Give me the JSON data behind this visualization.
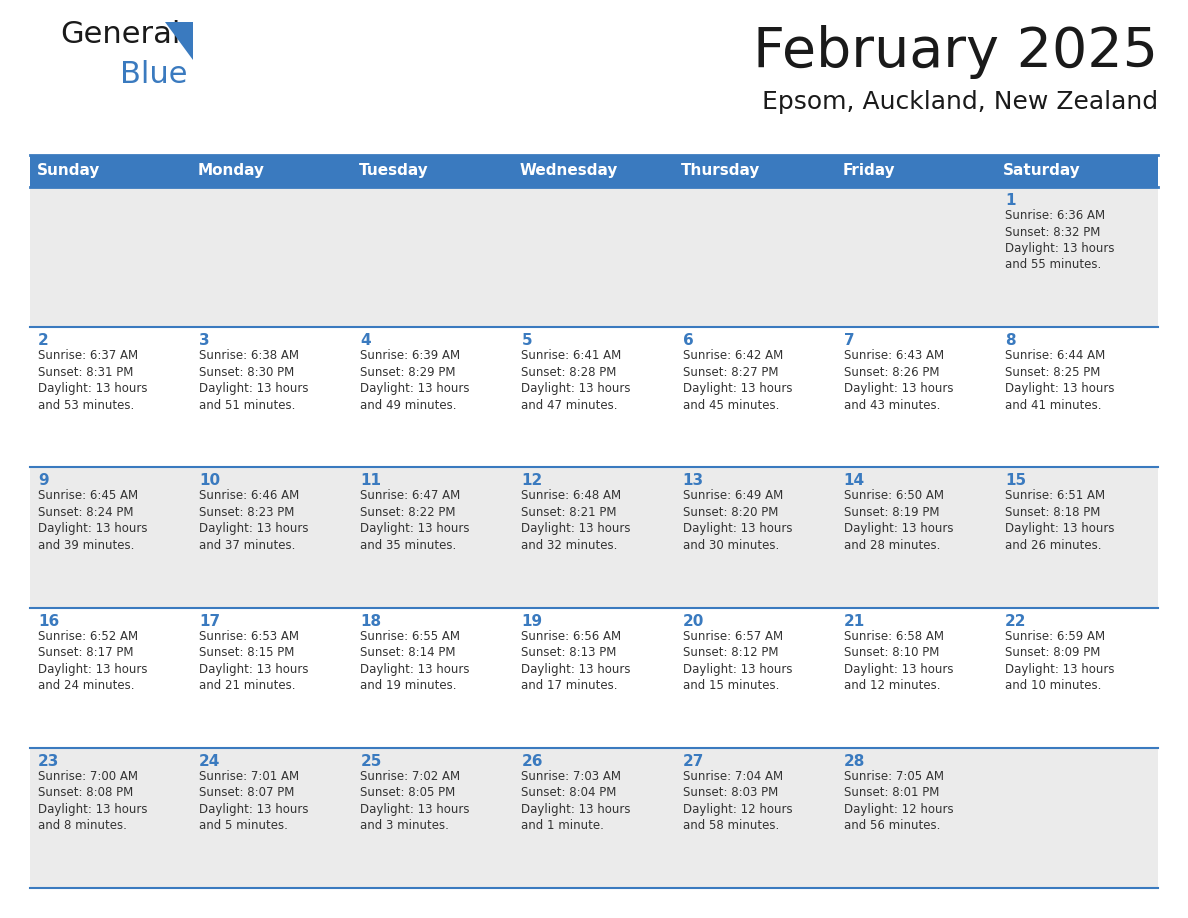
{
  "title": "February 2025",
  "subtitle": "Epsom, Auckland, New Zealand",
  "header_bg": "#3a7abf",
  "header_text_color": "#ffffff",
  "cell_bg_odd": "#ebebeb",
  "cell_bg_even": "#ffffff",
  "border_color": "#3a7abf",
  "day_headers": [
    "Sunday",
    "Monday",
    "Tuesday",
    "Wednesday",
    "Thursday",
    "Friday",
    "Saturday"
  ],
  "title_color": "#1a1a1a",
  "subtitle_color": "#1a1a1a",
  "day_num_color": "#3a7abf",
  "cell_text_color": "#333333",
  "logo_general_color": "#1a1a1a",
  "logo_blue_color": "#3a7abf",
  "logo_triangle_color": "#3a7abf",
  "days": [
    {
      "day": 1,
      "col": 6,
      "row": 0,
      "sunrise": "6:36 AM",
      "sunset": "8:32 PM",
      "daylight": "13 hours\nand 55 minutes."
    },
    {
      "day": 2,
      "col": 0,
      "row": 1,
      "sunrise": "6:37 AM",
      "sunset": "8:31 PM",
      "daylight": "13 hours\nand 53 minutes."
    },
    {
      "day": 3,
      "col": 1,
      "row": 1,
      "sunrise": "6:38 AM",
      "sunset": "8:30 PM",
      "daylight": "13 hours\nand 51 minutes."
    },
    {
      "day": 4,
      "col": 2,
      "row": 1,
      "sunrise": "6:39 AM",
      "sunset": "8:29 PM",
      "daylight": "13 hours\nand 49 minutes."
    },
    {
      "day": 5,
      "col": 3,
      "row": 1,
      "sunrise": "6:41 AM",
      "sunset": "8:28 PM",
      "daylight": "13 hours\nand 47 minutes."
    },
    {
      "day": 6,
      "col": 4,
      "row": 1,
      "sunrise": "6:42 AM",
      "sunset": "8:27 PM",
      "daylight": "13 hours\nand 45 minutes."
    },
    {
      "day": 7,
      "col": 5,
      "row": 1,
      "sunrise": "6:43 AM",
      "sunset": "8:26 PM",
      "daylight": "13 hours\nand 43 minutes."
    },
    {
      "day": 8,
      "col": 6,
      "row": 1,
      "sunrise": "6:44 AM",
      "sunset": "8:25 PM",
      "daylight": "13 hours\nand 41 minutes."
    },
    {
      "day": 9,
      "col": 0,
      "row": 2,
      "sunrise": "6:45 AM",
      "sunset": "8:24 PM",
      "daylight": "13 hours\nand 39 minutes."
    },
    {
      "day": 10,
      "col": 1,
      "row": 2,
      "sunrise": "6:46 AM",
      "sunset": "8:23 PM",
      "daylight": "13 hours\nand 37 minutes."
    },
    {
      "day": 11,
      "col": 2,
      "row": 2,
      "sunrise": "6:47 AM",
      "sunset": "8:22 PM",
      "daylight": "13 hours\nand 35 minutes."
    },
    {
      "day": 12,
      "col": 3,
      "row": 2,
      "sunrise": "6:48 AM",
      "sunset": "8:21 PM",
      "daylight": "13 hours\nand 32 minutes."
    },
    {
      "day": 13,
      "col": 4,
      "row": 2,
      "sunrise": "6:49 AM",
      "sunset": "8:20 PM",
      "daylight": "13 hours\nand 30 minutes."
    },
    {
      "day": 14,
      "col": 5,
      "row": 2,
      "sunrise": "6:50 AM",
      "sunset": "8:19 PM",
      "daylight": "13 hours\nand 28 minutes."
    },
    {
      "day": 15,
      "col": 6,
      "row": 2,
      "sunrise": "6:51 AM",
      "sunset": "8:18 PM",
      "daylight": "13 hours\nand 26 minutes."
    },
    {
      "day": 16,
      "col": 0,
      "row": 3,
      "sunrise": "6:52 AM",
      "sunset": "8:17 PM",
      "daylight": "13 hours\nand 24 minutes."
    },
    {
      "day": 17,
      "col": 1,
      "row": 3,
      "sunrise": "6:53 AM",
      "sunset": "8:15 PM",
      "daylight": "13 hours\nand 21 minutes."
    },
    {
      "day": 18,
      "col": 2,
      "row": 3,
      "sunrise": "6:55 AM",
      "sunset": "8:14 PM",
      "daylight": "13 hours\nand 19 minutes."
    },
    {
      "day": 19,
      "col": 3,
      "row": 3,
      "sunrise": "6:56 AM",
      "sunset": "8:13 PM",
      "daylight": "13 hours\nand 17 minutes."
    },
    {
      "day": 20,
      "col": 4,
      "row": 3,
      "sunrise": "6:57 AM",
      "sunset": "8:12 PM",
      "daylight": "13 hours\nand 15 minutes."
    },
    {
      "day": 21,
      "col": 5,
      "row": 3,
      "sunrise": "6:58 AM",
      "sunset": "8:10 PM",
      "daylight": "13 hours\nand 12 minutes."
    },
    {
      "day": 22,
      "col": 6,
      "row": 3,
      "sunrise": "6:59 AM",
      "sunset": "8:09 PM",
      "daylight": "13 hours\nand 10 minutes."
    },
    {
      "day": 23,
      "col": 0,
      "row": 4,
      "sunrise": "7:00 AM",
      "sunset": "8:08 PM",
      "daylight": "13 hours\nand 8 minutes."
    },
    {
      "day": 24,
      "col": 1,
      "row": 4,
      "sunrise": "7:01 AM",
      "sunset": "8:07 PM",
      "daylight": "13 hours\nand 5 minutes."
    },
    {
      "day": 25,
      "col": 2,
      "row": 4,
      "sunrise": "7:02 AM",
      "sunset": "8:05 PM",
      "daylight": "13 hours\nand 3 minutes."
    },
    {
      "day": 26,
      "col": 3,
      "row": 4,
      "sunrise": "7:03 AM",
      "sunset": "8:04 PM",
      "daylight": "13 hours\nand 1 minute."
    },
    {
      "day": 27,
      "col": 4,
      "row": 4,
      "sunrise": "7:04 AM",
      "sunset": "8:03 PM",
      "daylight": "12 hours\nand 58 minutes."
    },
    {
      "day": 28,
      "col": 5,
      "row": 4,
      "sunrise": "7:05 AM",
      "sunset": "8:01 PM",
      "daylight": "12 hours\nand 56 minutes."
    }
  ],
  "num_rows": 5,
  "num_cols": 7,
  "fig_width": 11.88,
  "fig_height": 9.18,
  "dpi": 100
}
